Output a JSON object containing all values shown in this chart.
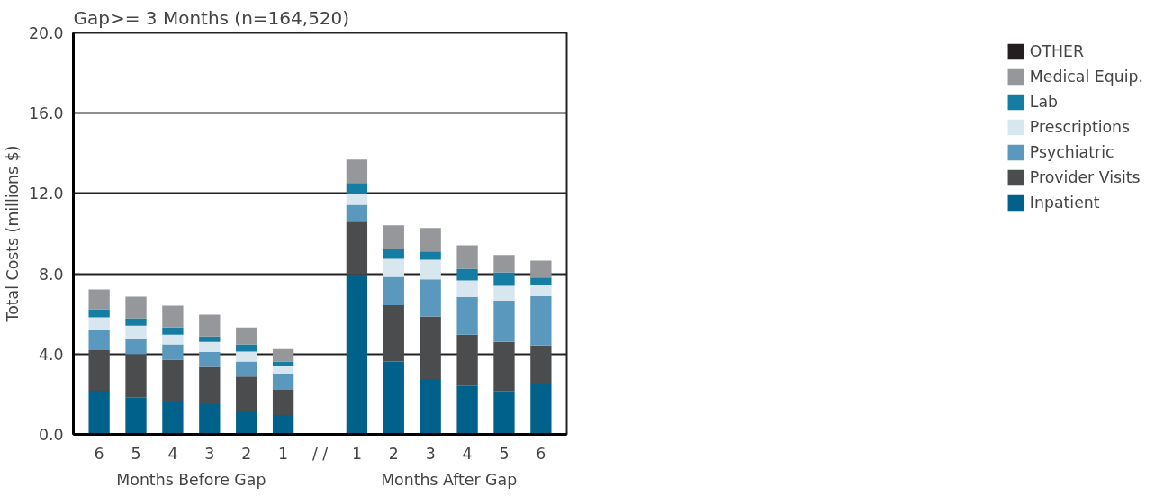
{
  "chart_data": {
    "type": "bar",
    "stacked": true,
    "title": "Gap>= 3 Months (n=164,520)",
    "ylabel": "Total Costs (millions $)",
    "categories": [
      "6",
      "5",
      "4",
      "3",
      "2",
      "1",
      "/ /",
      "1",
      "2",
      "3",
      "4",
      "5",
      "6"
    ],
    "series": [
      {
        "name": "Inpatient",
        "color": "#00618b",
        "values": [
          2.17,
          1.83,
          1.63,
          1.5,
          1.18,
          0.96,
          null,
          7.97,
          3.63,
          2.76,
          2.41,
          2.16,
          2.49
        ]
      },
      {
        "name": "Provider Visits",
        "color": "#4b4c4e",
        "values": [
          2.02,
          2.16,
          2.09,
          1.86,
          1.7,
          1.26,
          null,
          2.62,
          2.81,
          3.11,
          2.56,
          2.45,
          1.94
        ]
      },
      {
        "name": "Psychiatric",
        "color": "#5a99bd",
        "values": [
          1.05,
          0.8,
          0.76,
          0.74,
          0.75,
          0.81,
          null,
          0.84,
          1.41,
          1.85,
          1.88,
          2.06,
          2.46
        ]
      },
      {
        "name": "Prescriptions",
        "color": "#d8e6ef",
        "values": [
          0.59,
          0.63,
          0.49,
          0.51,
          0.49,
          0.37,
          null,
          0.56,
          0.9,
          0.98,
          0.82,
          0.73,
          0.56
        ]
      },
      {
        "name": "Lab",
        "color": "#157ca4",
        "values": [
          0.4,
          0.36,
          0.36,
          0.27,
          0.36,
          0.23,
          null,
          0.53,
          0.49,
          0.41,
          0.58,
          0.67,
          0.36
        ]
      },
      {
        "name": "Medical Equip.",
        "color": "#96979a",
        "values": [
          0.99,
          1.08,
          1.08,
          1.08,
          0.85,
          0.62,
          null,
          1.17,
          1.17,
          1.17,
          1.17,
          0.86,
          0.85
        ]
      },
      {
        "name": "OTHER",
        "color": "#231f20",
        "values": [
          0,
          0,
          0,
          0,
          0,
          0,
          null,
          0,
          0,
          0,
          0,
          0,
          0
        ]
      }
    ],
    "annotations": [
      "Months Before Gap",
      "Months After Gap"
    ],
    "ylim": [
      0,
      20
    ],
    "yticks": [
      {
        "value": 0,
        "label": "0.0"
      },
      {
        "value": 4,
        "label": "4.0"
      },
      {
        "value": 8,
        "label": "8.0"
      },
      {
        "value": 12,
        "label": "12.0"
      },
      {
        "value": 16,
        "label": "16.0"
      },
      {
        "value": 20,
        "label": "20.0"
      }
    ],
    "grid": "y",
    "legend": "right"
  }
}
